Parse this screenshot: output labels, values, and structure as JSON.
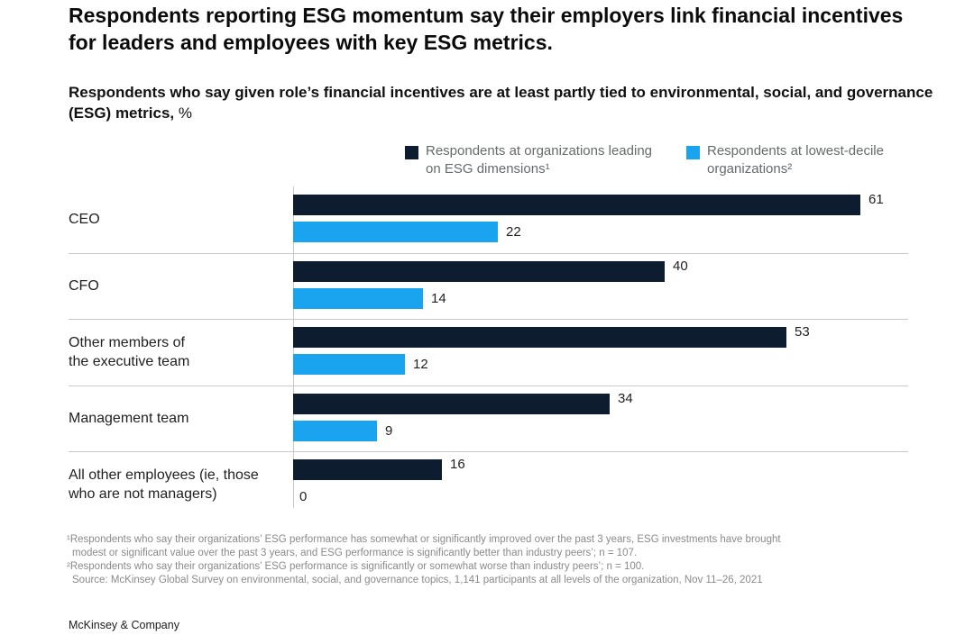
{
  "title": "Respondents reporting ESG momentum say their employers link financial incentives for leaders and employees with key ESG metrics.",
  "subtitle": "Respondents who say given role’s financial incentives are at least partly tied to environmental, social, and governance (ESG) metrics,",
  "subtitle_unit": "%",
  "legend": {
    "leading_line1": "Respondents at organizations leading",
    "leading_line2": "on ESG dimensions¹",
    "lowest_line1": "Respondents at lowest-decile",
    "lowest_line2": "organizations²"
  },
  "colors": {
    "leading": "#0d1c2e",
    "lowest": "#1aa3ee"
  },
  "chart_data": {
    "type": "bar",
    "orientation": "horizontal",
    "title": "Respondents who say given role’s financial incentives are at least partly tied to environmental, social, and governance (ESG) metrics, %",
    "categories": [
      [
        "CEO"
      ],
      [
        "CFO"
      ],
      [
        "Other members of",
        "the executive team"
      ],
      [
        "Management team"
      ],
      [
        "All other employees (ie, those",
        "who are not managers)"
      ]
    ],
    "series": [
      {
        "name": "Respondents at organizations leading on ESG dimensions¹",
        "values": [
          61,
          40,
          53,
          34,
          16
        ]
      },
      {
        "name": "Respondents at lowest-decile organizations²",
        "values": [
          22,
          14,
          12,
          9,
          0
        ]
      }
    ],
    "xlim": [
      0,
      65
    ]
  },
  "footnotes": [
    "¹Respondents who say their organizations’ ESG performance has somewhat or significantly improved over the past 3 years, ESG investments have brought",
    "modest or significant value over the past 3 years, and ESG performance is significantly better than industry peers’; n = 107.",
    "²Respondents who say their organizations’ ESG performance is significantly or somewhat worse than industry peers’; n = 100.",
    "Source: McKinsey Global Survey on environmental, social, and governance topics, 1,141 participants at all levels of the organization, Nov 11–26, 2021"
  ],
  "brand": "McKinsey & Company"
}
